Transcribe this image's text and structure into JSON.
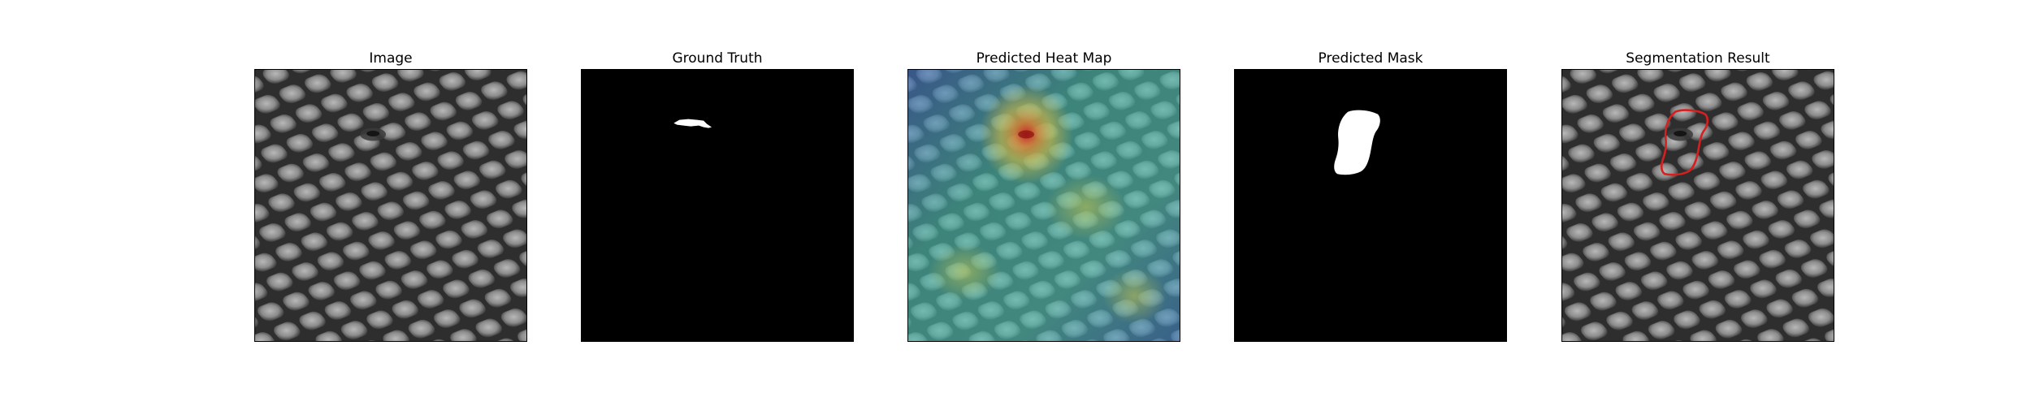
{
  "figure": {
    "panels": [
      {
        "title": "Image",
        "kind": "texture"
      },
      {
        "title": "Ground Truth",
        "kind": "mask"
      },
      {
        "title": "Predicted Heat Map",
        "kind": "heatmap"
      },
      {
        "title": "Predicted Mask",
        "kind": "mask"
      },
      {
        "title": "Segmentation Result",
        "kind": "texture-outline"
      }
    ]
  },
  "colors": {
    "background": "#ffffff",
    "mask_fg": "#ffffff",
    "mask_bg": "#000000",
    "outline": "#d62020",
    "heat_low": "#3f6fbf",
    "heat_mid": "#46b8a8",
    "heat_high": "#e0c040",
    "heat_peak": "#d02020"
  }
}
